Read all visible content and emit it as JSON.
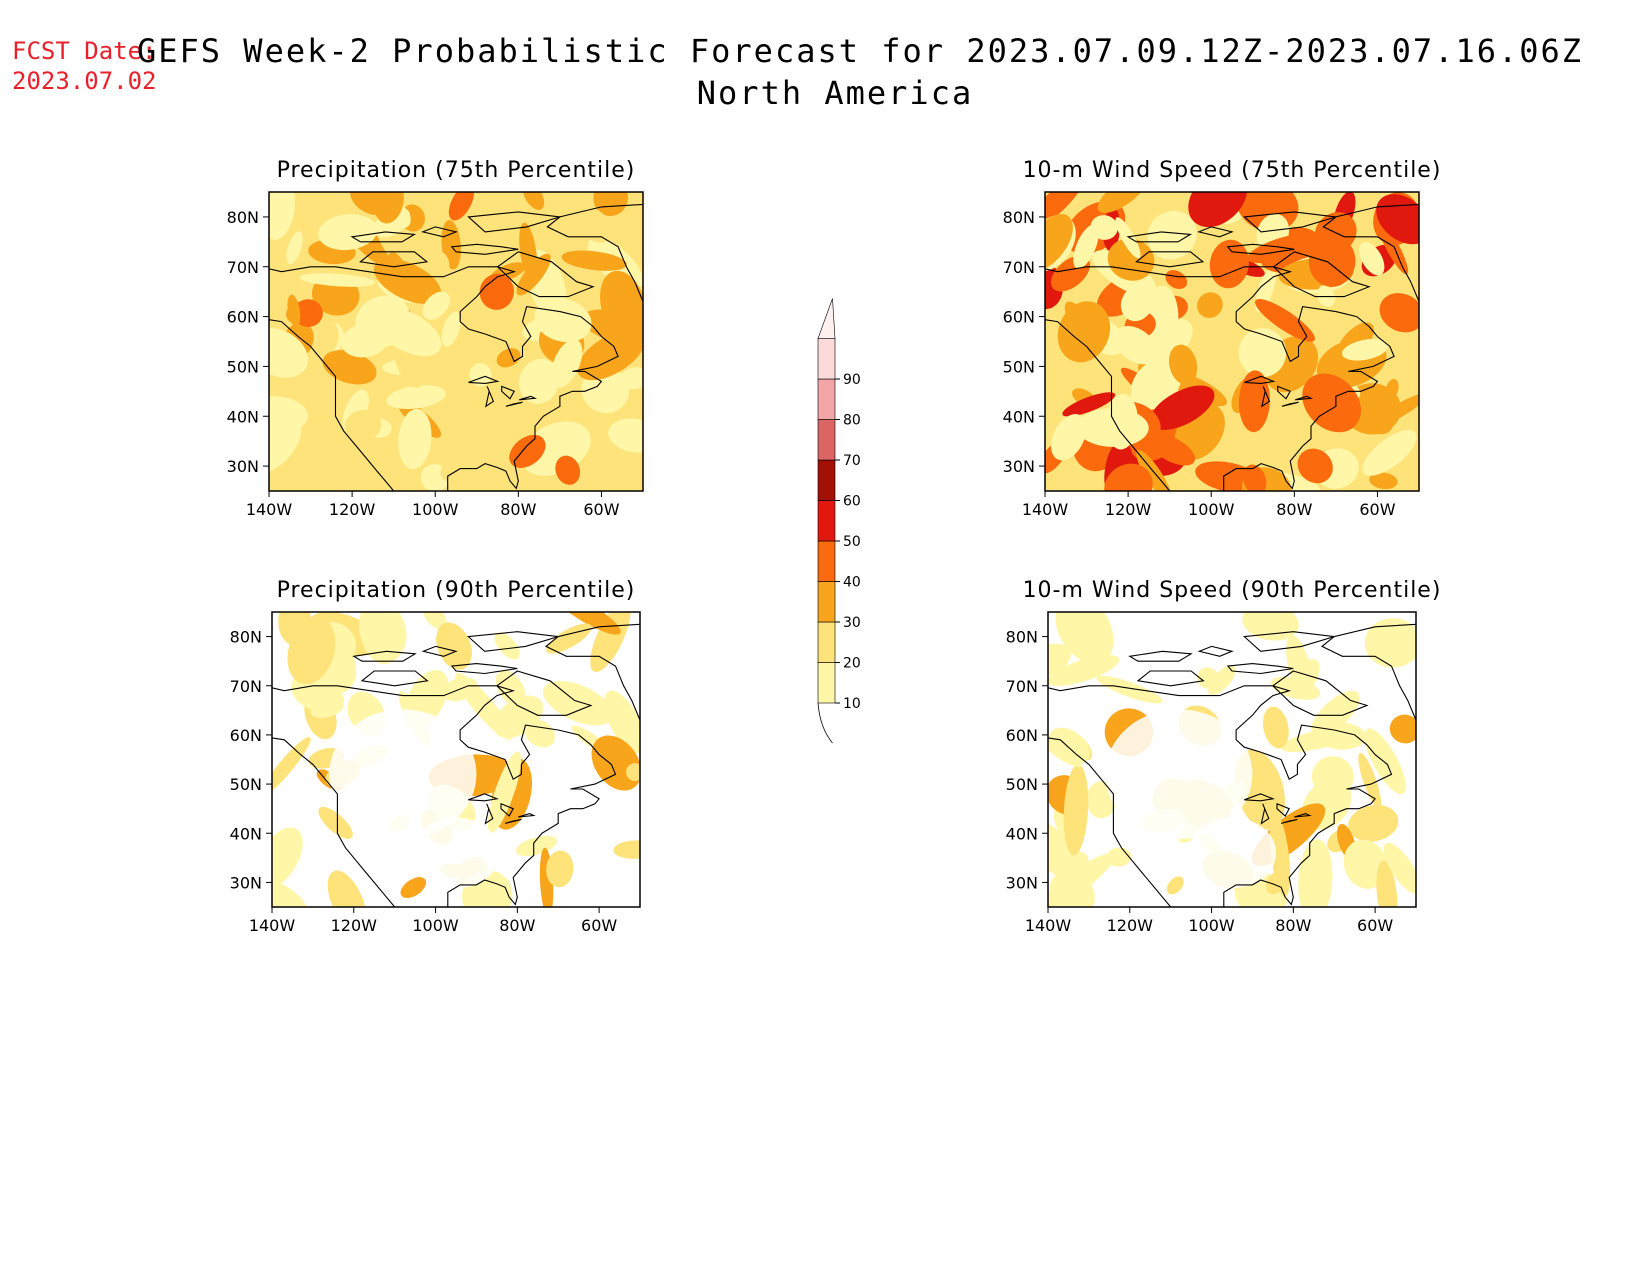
{
  "header": {
    "fcst_label": "FCST Date:",
    "fcst_date": "2023.07.02",
    "title": "GEFS Week-2 Probabilistic Forecast for 2023.07.09.12Z-2023.07.16.06Z",
    "region": "North America"
  },
  "panels": [
    {
      "id": "precip75",
      "title": "Precipitation (75th Percentile)",
      "intensity": 0.65
    },
    {
      "id": "wind75",
      "title": "10-m Wind Speed (75th Percentile)",
      "intensity": 0.9
    },
    {
      "id": "precip90",
      "title": "Precipitation (90th Percentile)",
      "intensity": 0.2
    },
    {
      "id": "wind90",
      "title": "10-m Wind Speed (90th Percentile)",
      "intensity": 0.25
    }
  ],
  "axes": {
    "lat_labels": [
      "80N",
      "70N",
      "60N",
      "50N",
      "40N",
      "30N"
    ],
    "lon_labels": [
      "140W",
      "120W",
      "100W",
      "80W",
      "60W"
    ],
    "lat_values": [
      80,
      70,
      60,
      50,
      40,
      30
    ],
    "lon_values": [
      -140,
      -120,
      -100,
      -80,
      -60
    ],
    "lat_range": [
      25,
      85
    ],
    "lon_range": [
      -140,
      -50
    ]
  },
  "colorbar": {
    "levels": [
      "10",
      "20",
      "30",
      "40",
      "50",
      "60",
      "70",
      "80",
      "90"
    ],
    "colors": [
      "#fff6a8",
      "#fde37a",
      "#f9a51c",
      "#fb6a0c",
      "#e0180d",
      "#a40f06",
      "#dd6464",
      "#f2a6a6",
      "#fbdada",
      "#fff0f0"
    ]
  }
}
